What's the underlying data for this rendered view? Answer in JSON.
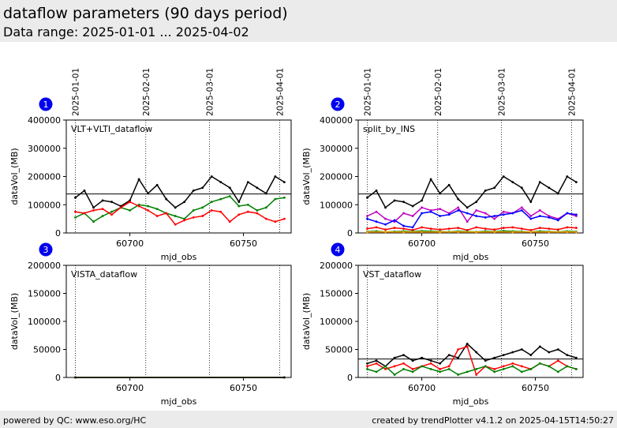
{
  "header": {
    "title": "dataflow parameters (90 days period)",
    "subtitle": "Data range: 2025-01-01 ... 2025-04-02"
  },
  "footer": {
    "left": "powered by QC: www.eso.org/HC",
    "right": "created by trendPlotter v4.1.2 on 2025-04-15T14:50:27"
  },
  "date_markers": [
    {
      "label": "2025-01-01",
      "mjd": 60676
    },
    {
      "label": "2025-02-01",
      "mjd": 60707
    },
    {
      "label": "2025-03-01",
      "mjd": 60735
    },
    {
      "label": "2025-04-01",
      "mjd": 60766
    }
  ],
  "colors": {
    "black": "#000000",
    "green": "#008000",
    "red": "#ff0000",
    "blue": "#0000ff",
    "magenta": "#c000c0",
    "orange": "#ffa500",
    "badge": "#0000ee"
  },
  "chart_data": [
    {
      "type": "line",
      "panel_number": "1",
      "annotation": "VLT+VLTI_dataflow",
      "xlabel": "mjd_obs",
      "ylabel": "dataVol_(MB)",
      "xlim": [
        60672,
        60771
      ],
      "ylim": [
        0,
        400000
      ],
      "xticks": [
        60700,
        60750
      ],
      "yticks": [
        0,
        100000,
        200000,
        300000,
        400000
      ],
      "reference_line": 138000,
      "series": [
        {
          "color": "black",
          "x": [
            60676,
            60680,
            60684,
            60688,
            60692,
            60696,
            60700,
            60704,
            60708,
            60712,
            60716,
            60720,
            60724,
            60728,
            60732,
            60736,
            60740,
            60744,
            60748,
            60752,
            60756,
            60760,
            60764,
            60768
          ],
          "values": [
            125000,
            150000,
            90000,
            115000,
            110000,
            95000,
            115000,
            190000,
            140000,
            170000,
            120000,
            90000,
            110000,
            150000,
            160000,
            200000,
            180000,
            160000,
            110000,
            180000,
            160000,
            140000,
            200000,
            180000
          ]
        },
        {
          "color": "green",
          "x": [
            60676,
            60680,
            60684,
            60688,
            60692,
            60696,
            60700,
            60704,
            60708,
            60712,
            60716,
            60720,
            60724,
            60728,
            60732,
            60736,
            60740,
            60744,
            60748,
            60752,
            60756,
            60760,
            60764,
            60768
          ],
          "values": [
            55000,
            70000,
            40000,
            60000,
            75000,
            90000,
            80000,
            100000,
            95000,
            85000,
            70000,
            60000,
            50000,
            80000,
            90000,
            110000,
            120000,
            130000,
            95000,
            100000,
            80000,
            90000,
            120000,
            125000
          ]
        },
        {
          "color": "red",
          "x": [
            60676,
            60680,
            60684,
            60688,
            60692,
            60696,
            60700,
            60704,
            60708,
            60712,
            60716,
            60720,
            60724,
            60728,
            60732,
            60736,
            60740,
            60744,
            60748,
            60752,
            60756,
            60760,
            60764,
            60768
          ],
          "values": [
            75000,
            70000,
            80000,
            85000,
            65000,
            90000,
            110000,
            95000,
            80000,
            60000,
            70000,
            30000,
            45000,
            55000,
            60000,
            80000,
            75000,
            40000,
            65000,
            75000,
            70000,
            50000,
            40000,
            50000
          ]
        }
      ]
    },
    {
      "type": "line",
      "panel_number": "2",
      "annotation": "split_by_INS",
      "xlabel": "mjd_obs",
      "ylabel": "dataVol_(MB)",
      "xlim": [
        60672,
        60771
      ],
      "ylim": [
        0,
        400000
      ],
      "xticks": [
        60700,
        60750
      ],
      "yticks": [
        0,
        100000,
        200000,
        300000,
        400000
      ],
      "reference_line": 138000,
      "series": [
        {
          "color": "black",
          "x": [
            60676,
            60680,
            60684,
            60688,
            60692,
            60696,
            60700,
            60704,
            60708,
            60712,
            60716,
            60720,
            60724,
            60728,
            60732,
            60736,
            60740,
            60744,
            60748,
            60752,
            60756,
            60760,
            60764,
            60768
          ],
          "values": [
            125000,
            150000,
            90000,
            115000,
            110000,
            95000,
            115000,
            190000,
            140000,
            170000,
            120000,
            90000,
            110000,
            150000,
            160000,
            200000,
            180000,
            160000,
            110000,
            180000,
            160000,
            140000,
            200000,
            180000
          ]
        },
        {
          "color": "magenta",
          "x": [
            60676,
            60680,
            60684,
            60688,
            60692,
            60696,
            60700,
            60704,
            60708,
            60712,
            60716,
            60720,
            60724,
            60728,
            60732,
            60736,
            60740,
            60744,
            60748,
            60752,
            60756,
            60760,
            60764,
            60768
          ],
          "values": [
            60000,
            75000,
            50000,
            40000,
            70000,
            60000,
            90000,
            80000,
            85000,
            70000,
            90000,
            40000,
            80000,
            70000,
            50000,
            75000,
            70000,
            90000,
            60000,
            80000,
            60000,
            50000,
            70000,
            60000
          ]
        },
        {
          "color": "blue",
          "x": [
            60676,
            60680,
            60684,
            60688,
            60692,
            60696,
            60700,
            60704,
            60708,
            60712,
            60716,
            60720,
            60724,
            60728,
            60732,
            60736,
            60740,
            60744,
            60748,
            60752,
            60756,
            60760,
            60764,
            60768
          ],
          "values": [
            50000,
            40000,
            30000,
            45000,
            25000,
            20000,
            70000,
            75000,
            60000,
            65000,
            80000,
            70000,
            60000,
            55000,
            60000,
            65000,
            70000,
            80000,
            50000,
            60000,
            55000,
            45000,
            70000,
            65000
          ]
        },
        {
          "color": "red",
          "x": [
            60676,
            60680,
            60684,
            60688,
            60692,
            60696,
            60700,
            60704,
            60708,
            60712,
            60716,
            60720,
            60724,
            60728,
            60732,
            60736,
            60740,
            60744,
            60748,
            60752,
            60756,
            60760,
            60764,
            60768
          ],
          "values": [
            15000,
            20000,
            12000,
            18000,
            15000,
            10000,
            20000,
            15000,
            12000,
            15000,
            18000,
            10000,
            20000,
            15000,
            12000,
            18000,
            20000,
            15000,
            10000,
            18000,
            15000,
            12000,
            20000,
            18000
          ]
        },
        {
          "color": "green",
          "x": [
            60676,
            60680,
            60684,
            60688,
            60692,
            60696,
            60700,
            60704,
            60708,
            60712,
            60716,
            60720,
            60724,
            60728,
            60732,
            60736,
            60740,
            60744,
            60748,
            60752,
            60756,
            60760,
            60764,
            60768
          ],
          "values": [
            5000,
            6000,
            4000,
            5000,
            6000,
            5000,
            7000,
            6000,
            5000,
            4000,
            6000,
            5000,
            4000,
            6000,
            5000,
            7000,
            6000,
            5000,
            4000,
            6000,
            5000,
            4000,
            6000,
            5000
          ]
        },
        {
          "color": "orange",
          "x": [
            60676,
            60684,
            60692,
            60700,
            60708,
            60716,
            60724,
            60732,
            60740,
            60748,
            60756,
            60764,
            60768
          ],
          "values": [
            3000,
            3500,
            3000,
            3500,
            3000,
            3500,
            3000,
            3500,
            3000,
            3500,
            3000,
            3500,
            3000
          ]
        }
      ]
    },
    {
      "type": "line",
      "panel_number": "3",
      "annotation": "VISTA_dataflow",
      "xlabel": "mjd_obs",
      "ylabel": "dataVol_(MB)",
      "xlim": [
        60672,
        60771
      ],
      "ylim": [
        0,
        200000
      ],
      "xticks": [
        60700,
        60750
      ],
      "yticks": [
        0,
        50000,
        100000,
        150000,
        200000
      ],
      "reference_line": 0,
      "series": [
        {
          "color": "red",
          "x": [
            60676,
            60768
          ],
          "values": [
            0,
            0
          ]
        },
        {
          "color": "green",
          "x": [
            60676,
            60768
          ],
          "values": [
            0,
            0
          ]
        },
        {
          "color": "black",
          "x": [
            60676,
            60768
          ],
          "values": [
            0,
            0
          ]
        }
      ]
    },
    {
      "type": "line",
      "panel_number": "4",
      "annotation": "VST_dataflow",
      "xlabel": "mjd_obs",
      "ylabel": "dataVol_(MB)",
      "xlim": [
        60672,
        60771
      ],
      "ylim": [
        0,
        200000
      ],
      "xticks": [
        60700,
        60750
      ],
      "yticks": [
        0,
        50000,
        100000,
        150000,
        200000
      ],
      "reference_line": 33000,
      "series": [
        {
          "color": "black",
          "x": [
            60676,
            60680,
            60684,
            60688,
            60692,
            60696,
            60700,
            60704,
            60708,
            60712,
            60716,
            60720,
            60724,
            60728,
            60732,
            60736,
            60740,
            60744,
            60748,
            60752,
            60756,
            60760,
            60764,
            60768
          ],
          "values": [
            25000,
            30000,
            20000,
            35000,
            40000,
            30000,
            35000,
            30000,
            25000,
            40000,
            35000,
            60000,
            45000,
            30000,
            35000,
            40000,
            45000,
            50000,
            40000,
            55000,
            45000,
            50000,
            40000,
            35000
          ]
        },
        {
          "color": "red",
          "x": [
            60676,
            60680,
            60684,
            60688,
            60692,
            60696,
            60700,
            60704,
            60708,
            60712,
            60716,
            60720,
            60724,
            60728,
            60732,
            60736,
            60740,
            60744,
            60748,
            60752,
            60756,
            60760,
            60764,
            60768
          ],
          "values": [
            20000,
            25000,
            15000,
            20000,
            25000,
            15000,
            20000,
            25000,
            15000,
            20000,
            50000,
            55000,
            5000,
            20000,
            15000,
            20000,
            25000,
            20000,
            15000,
            25000,
            20000,
            30000,
            20000,
            15000
          ]
        },
        {
          "color": "green",
          "x": [
            60676,
            60680,
            60684,
            60688,
            60692,
            60696,
            60700,
            60704,
            60708,
            60712,
            60716,
            60720,
            60724,
            60728,
            60732,
            60736,
            60740,
            60744,
            60748,
            60752,
            60756,
            60760,
            60764,
            60768
          ],
          "values": [
            15000,
            10000,
            20000,
            5000,
            15000,
            10000,
            20000,
            15000,
            10000,
            15000,
            5000,
            10000,
            15000,
            20000,
            10000,
            15000,
            20000,
            10000,
            15000,
            25000,
            20000,
            10000,
            20000,
            15000
          ]
        }
      ]
    }
  ]
}
